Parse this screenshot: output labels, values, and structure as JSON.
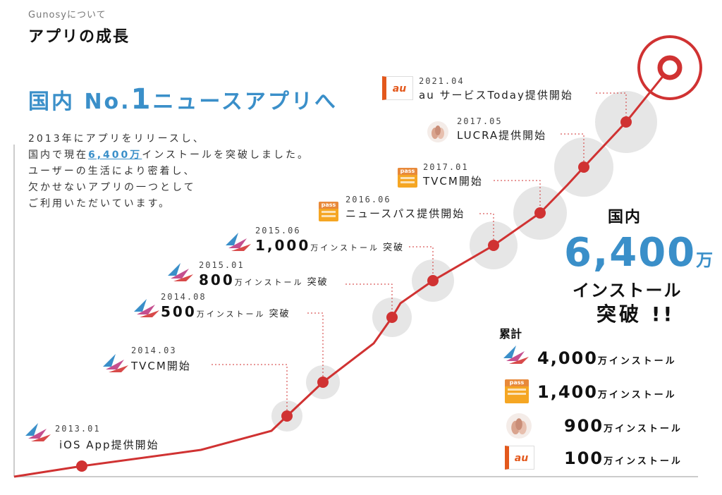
{
  "header": {
    "eyebrow": "Gunosyについて",
    "title": "アプリの成長"
  },
  "headline": {
    "part1": "国内 No.",
    "big": "1",
    "part2": "ニュースアプリへ"
  },
  "intro": {
    "line1": "2013年にアプリをリリースし、",
    "line2_pre": "国内で現在",
    "line2_hl": "6,400万",
    "line2_post": "インストールを突破しました。",
    "line3": "ユーザーの生活により密着し、",
    "line4": "欠かせないアプリの一つとして",
    "line5": "ご利用いただいています。"
  },
  "milestones": [
    {
      "date": "2013.01",
      "label": "iOS App提供開始",
      "icon": "gunosy-logo-icon"
    },
    {
      "date": "2014.03",
      "label": "TVCM開始",
      "icon": "gunosy-logo-icon"
    },
    {
      "date": "2014.08",
      "number": "500",
      "unit": "万インストール",
      "suffix": "突破",
      "icon": "gunosy-logo-icon"
    },
    {
      "date": "2015.01",
      "number": "800",
      "unit": "万インストール",
      "suffix": "突破",
      "icon": "gunosy-logo-icon"
    },
    {
      "date": "2015.06",
      "number": "1,000",
      "unit": "万インストール",
      "suffix": "突破",
      "icon": "gunosy-logo-icon"
    },
    {
      "date": "2016.06",
      "label": "ニュースパス提供開始",
      "icon": "newspass-logo-icon"
    },
    {
      "date": "2017.01",
      "label": "TVCM開始",
      "icon": "newspass-logo-icon"
    },
    {
      "date": "2017.05",
      "label": "LUCRA提供開始",
      "icon": "lucra-logo-icon"
    },
    {
      "date": "2021.04",
      "label": "au サービスToday提供開始",
      "icon": "au-logo-icon"
    }
  ],
  "summary": {
    "label": "国内",
    "number": "6,400",
    "unit": "万",
    "line2": "インストール",
    "line3": "突破 !!"
  },
  "cumulative": {
    "label": "累計",
    "items": [
      {
        "number": "4,000",
        "unit": "万インストール",
        "icon": "gunosy-logo-icon"
      },
      {
        "number": "1,400",
        "unit": "万インストール",
        "icon": "newspass-logo-icon"
      },
      {
        "number": "900",
        "unit": "万インストール",
        "icon": "lucra-logo-icon"
      },
      {
        "number": "100",
        "unit": "万インストール",
        "icon": "au-logo-icon"
      }
    ]
  },
  "logo_texts": {
    "pass": "pass",
    "au": "au"
  },
  "colors": {
    "accent_blue": "#3a8fc9",
    "line_red": "#d03232",
    "halo_gray": "#e6e6e6"
  }
}
